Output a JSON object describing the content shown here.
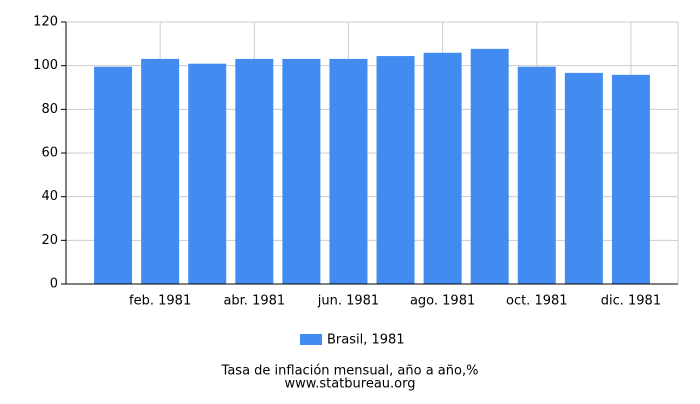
{
  "chart_data": {
    "type": "bar",
    "title": "Tasa de inflación mensual, año a año,%",
    "source": "www.statbureau.org",
    "categories": [
      null,
      "feb. 1981",
      null,
      "abr. 1981",
      null,
      "jun. 1981",
      null,
      "ago. 1981",
      null,
      "oct. 1981",
      null,
      "dic. 1981"
    ],
    "series": [
      {
        "name": "Brasil, 1981",
        "color": "#428bf0",
        "values": [
          99.5,
          103.1,
          100.9,
          103.1,
          103.1,
          103.1,
          104.4,
          105.9,
          107.7,
          99.5,
          96.7,
          95.8
        ]
      }
    ],
    "ylim": [
      0,
      120
    ],
    "yticks": [
      0,
      20,
      40,
      60,
      80,
      100,
      120
    ],
    "grid": true
  }
}
